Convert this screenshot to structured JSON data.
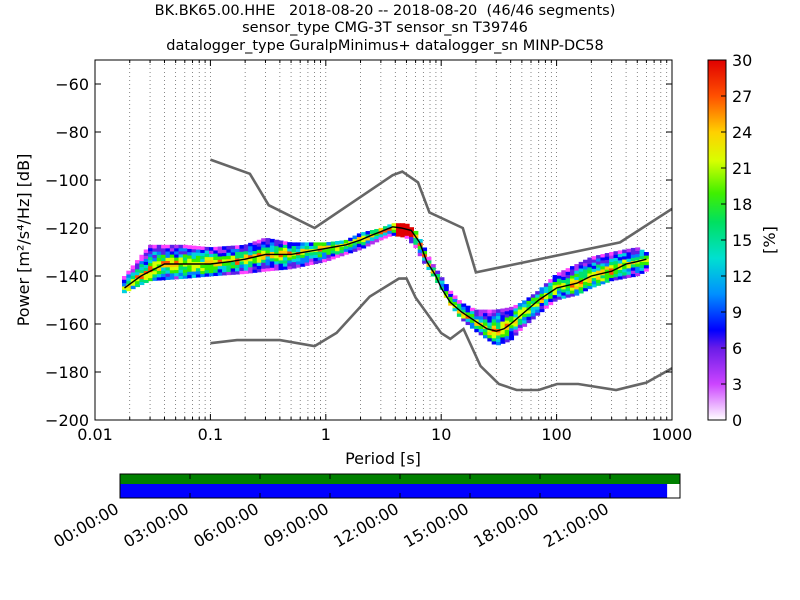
{
  "header": {
    "line1": "BK.BK65.00.HHE   2018-08-20 -- 2018-08-20  (46/46 segments)",
    "line2": "sensor_type CMG-3T sensor_sn T39746",
    "line3": "datalogger_type GuralpMinimus+ datalogger_sn MINP-DC58"
  },
  "chart_data": {
    "type": "heatmap",
    "xlabel": "Period [s]",
    "ylabel": "Power [m²/s⁴/Hz] [dB]",
    "xscale": "log",
    "xlim": [
      0.01,
      1000
    ],
    "ylim": [
      -200,
      -50
    ],
    "xticks": [
      {
        "v": 0.01,
        "label": "0.01"
      },
      {
        "v": 0.1,
        "label": "0.1"
      },
      {
        "v": 1,
        "label": "1"
      },
      {
        "v": 10,
        "label": "10"
      },
      {
        "v": 100,
        "label": "100"
      },
      {
        "v": 1000,
        "label": "1000"
      }
    ],
    "yticks": [
      {
        "v": -60,
        "label": "−60"
      },
      {
        "v": -80,
        "label": "−80"
      },
      {
        "v": -100,
        "label": "−100"
      },
      {
        "v": -120,
        "label": "−120"
      },
      {
        "v": -140,
        "label": "−140"
      },
      {
        "v": -160,
        "label": "−160"
      },
      {
        "v": -180,
        "label": "−180"
      },
      {
        "v": -200,
        "label": "−200"
      }
    ],
    "grid": "vertical-dotted",
    "colorbar": {
      "label": "[%]",
      "range": [
        0,
        30
      ],
      "ticks": [
        {
          "v": 0,
          "label": "0"
        },
        {
          "v": 3,
          "label": "3"
        },
        {
          "v": 6,
          "label": "6"
        },
        {
          "v": 9,
          "label": "9"
        },
        {
          "v": 12,
          "label": "12"
        },
        {
          "v": 15,
          "label": "15"
        },
        {
          "v": 18,
          "label": "18"
        },
        {
          "v": 21,
          "label": "21"
        },
        {
          "v": 24,
          "label": "24"
        },
        {
          "v": 27,
          "label": "27"
        },
        {
          "v": 30,
          "label": "30"
        }
      ]
    },
    "noise_models": [
      {
        "name": "new-high-noise-model",
        "color": "#666666",
        "points": [
          [
            0.1,
            -91.5
          ],
          [
            0.22,
            -97.4
          ],
          [
            0.32,
            -110.5
          ],
          [
            0.8,
            -120
          ],
          [
            3.8,
            -98
          ],
          [
            4.6,
            -96.5
          ],
          [
            6.3,
            -101
          ],
          [
            7.9,
            -113.5
          ],
          [
            15.4,
            -120
          ],
          [
            20,
            -138.5
          ],
          [
            354,
            -126
          ],
          [
            1000,
            -112
          ]
        ]
      },
      {
        "name": "new-low-noise-model",
        "color": "#666666",
        "points": [
          [
            0.1,
            -168
          ],
          [
            0.17,
            -166.7
          ],
          [
            0.4,
            -166.7
          ],
          [
            0.8,
            -169.2
          ],
          [
            1.24,
            -163.7
          ],
          [
            2.4,
            -148.6
          ],
          [
            4.3,
            -141.1
          ],
          [
            5,
            -141
          ],
          [
            6,
            -149
          ],
          [
            10,
            -163.8
          ],
          [
            12,
            -166.2
          ],
          [
            15.6,
            -162.1
          ],
          [
            21.9,
            -177.5
          ],
          [
            31.6,
            -185
          ],
          [
            45,
            -187.5
          ],
          [
            70,
            -187.5
          ],
          [
            101,
            -185
          ],
          [
            154,
            -185
          ],
          [
            328,
            -187.5
          ],
          [
            600,
            -184.4
          ],
          [
            1000,
            -178.4
          ]
        ]
      }
    ],
    "mode_curve": {
      "name": "mode",
      "color": "#000000",
      "points": [
        [
          0.018,
          -145
        ],
        [
          0.025,
          -140
        ],
        [
          0.03,
          -138
        ],
        [
          0.04,
          -135
        ],
        [
          0.06,
          -135
        ],
        [
          0.1,
          -135
        ],
        [
          0.15,
          -134
        ],
        [
          0.2,
          -133
        ],
        [
          0.3,
          -131
        ],
        [
          0.5,
          -131
        ],
        [
          1,
          -128.5
        ],
        [
          1.5,
          -127
        ],
        [
          2,
          -125
        ],
        [
          2.5,
          -123
        ],
        [
          3,
          -121.5
        ],
        [
          3.8,
          -119.5
        ],
        [
          4.5,
          -120
        ],
        [
          5.5,
          -121
        ],
        [
          6.5,
          -126
        ],
        [
          7.5,
          -134
        ],
        [
          9,
          -140
        ],
        [
          10,
          -145
        ],
        [
          12,
          -151
        ],
        [
          15,
          -155
        ],
        [
          20,
          -159
        ],
        [
          25,
          -162
        ],
        [
          30,
          -163
        ],
        [
          35,
          -162
        ],
        [
          40,
          -160
        ],
        [
          50,
          -156
        ],
        [
          70,
          -150
        ],
        [
          100,
          -145
        ],
        [
          150,
          -143
        ],
        [
          200,
          -140
        ],
        [
          300,
          -138
        ],
        [
          400,
          -135
        ],
        [
          500,
          -134
        ],
        [
          600,
          -133
        ]
      ]
    },
    "upper_envelope": [
      [
        0.018,
        -140
      ],
      [
        0.03,
        -127
      ],
      [
        0.06,
        -127
      ],
      [
        0.1,
        -128
      ],
      [
        0.2,
        -127
      ],
      [
        0.3,
        -124
      ],
      [
        0.5,
        -126
      ],
      [
        1,
        -126
      ],
      [
        1.5,
        -125
      ],
      [
        2,
        -122
      ],
      [
        3,
        -120
      ],
      [
        3.8,
        -118
      ],
      [
        5,
        -118
      ],
      [
        6,
        -121
      ],
      [
        7,
        -127
      ],
      [
        8,
        -133
      ],
      [
        10,
        -140
      ],
      [
        12,
        -146
      ],
      [
        15,
        -151
      ],
      [
        20,
        -154
      ],
      [
        30,
        -154
      ],
      [
        40,
        -153
      ],
      [
        50,
        -151
      ],
      [
        70,
        -146
      ],
      [
        100,
        -139
      ],
      [
        150,
        -135
      ],
      [
        200,
        -132
      ],
      [
        300,
        -130
      ],
      [
        500,
        -128
      ],
      [
        600,
        -130
      ]
    ],
    "lower_envelope": [
      [
        0.018,
        -147
      ],
      [
        0.03,
        -142
      ],
      [
        0.06,
        -141
      ],
      [
        0.1,
        -140
      ],
      [
        0.2,
        -139
      ],
      [
        0.3,
        -138
      ],
      [
        0.5,
        -137
      ],
      [
        1,
        -134
      ],
      [
        1.5,
        -131
      ],
      [
        2,
        -129
      ],
      [
        3,
        -125
      ],
      [
        3.8,
        -123
      ],
      [
        5,
        -124
      ],
      [
        6,
        -128
      ],
      [
        7,
        -134
      ],
      [
        8,
        -138
      ],
      [
        10,
        -145
      ],
      [
        12,
        -152
      ],
      [
        15,
        -158
      ],
      [
        20,
        -163
      ],
      [
        30,
        -169
      ],
      [
        40,
        -167
      ],
      [
        50,
        -162
      ],
      [
        70,
        -156
      ],
      [
        100,
        -150
      ],
      [
        150,
        -148
      ],
      [
        200,
        -145
      ],
      [
        300,
        -142
      ],
      [
        500,
        -140
      ],
      [
        600,
        -138
      ]
    ],
    "time_bar": {
      "ticks": [
        "00:00:00",
        "03:00:00",
        "06:00:00",
        "09:00:00",
        "12:00:00",
        "15:00:00",
        "18:00:00",
        "21:00:00"
      ],
      "top_color": "#008000",
      "bottom_color": "#0000ff",
      "top_coverage": [
        0,
        1
      ],
      "bottom_coverage": [
        0,
        0.977
      ]
    }
  }
}
